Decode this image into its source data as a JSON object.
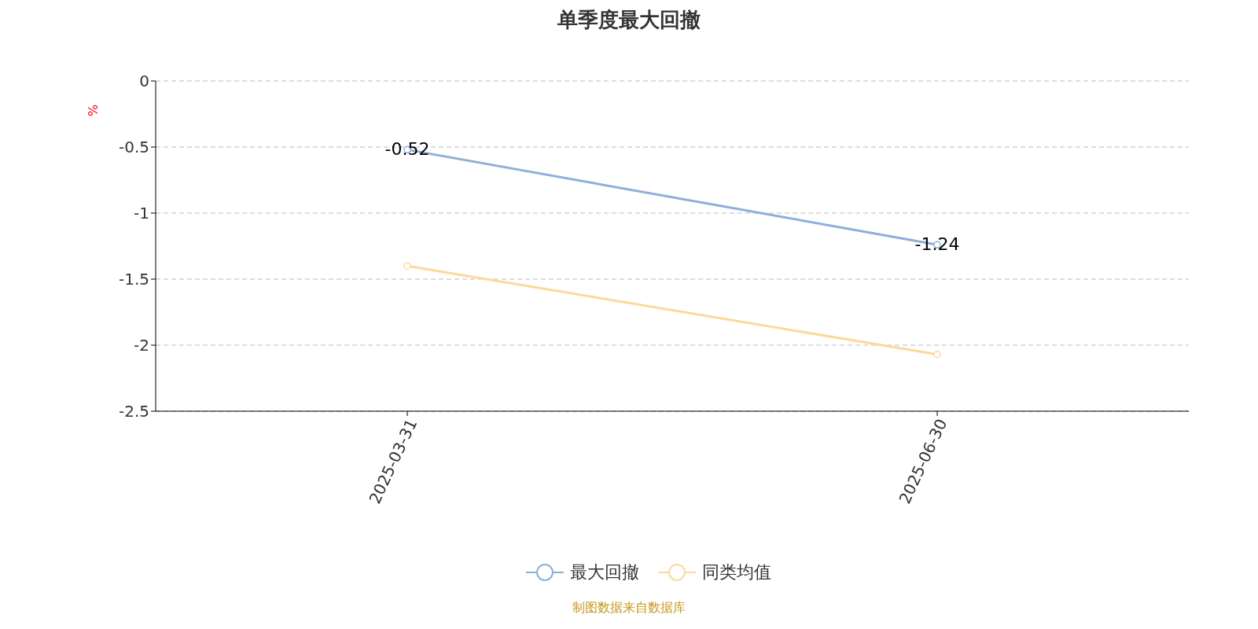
{
  "chart_data": {
    "type": "line",
    "title": "单季度最大回撤",
    "ylabel": "%",
    "categories": [
      "2025-03-31",
      "2025-06-30"
    ],
    "series": [
      {
        "name": "最大回撤",
        "color": "#8eaedb",
        "values": [
          -0.52,
          -1.24
        ],
        "value_labels": [
          "-0.52",
          "-1.24"
        ]
      },
      {
        "name": "同类均值",
        "color": "#fdd99a",
        "values": [
          -1.4,
          -2.07
        ]
      }
    ],
    "ylim": [
      -2.5,
      0
    ],
    "yticks": [
      -2.5,
      -2,
      -1.5,
      -1,
      -0.5,
      0
    ],
    "grid": "y",
    "legend": "bottom",
    "marker": "circle",
    "line_style": "solid",
    "annotations": [
      "制图数据来自数据库"
    ]
  }
}
